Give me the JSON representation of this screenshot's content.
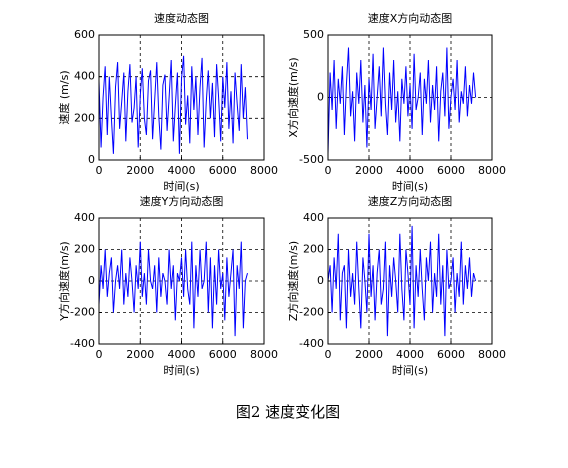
{
  "chart_data": [
    {
      "type": "line",
      "title": "速度动态图",
      "xlabel": "时间(s)",
      "ylabel": "速度 (m/s)",
      "xlim": [
        0,
        8000
      ],
      "xticks": [
        0,
        2000,
        4000,
        6000,
        8000
      ],
      "ylim": [
        0,
        600
      ],
      "yticks": [
        0,
        200,
        400,
        600
      ],
      "grid": true,
      "x": [
        0,
        100,
        200,
        300,
        400,
        500,
        600,
        700,
        800,
        900,
        1000,
        1100,
        1200,
        1300,
        1400,
        1500,
        1600,
        1700,
        1800,
        1900,
        2000,
        2100,
        2200,
        2300,
        2400,
        2500,
        2600,
        2700,
        2800,
        2900,
        3000,
        3100,
        3200,
        3300,
        3400,
        3500,
        3600,
        3700,
        3800,
        3900,
        4000,
        4100,
        4200,
        4300,
        4400,
        4500,
        4600,
        4700,
        4800,
        4900,
        5000,
        5100,
        5200,
        5300,
        5400,
        5500,
        5600,
        5700,
        5800,
        5900,
        6000,
        6100,
        6200,
        6300,
        6400,
        6500,
        6600,
        6700,
        6800,
        6900,
        7000,
        7100,
        7200
      ],
      "series": [
        {
          "color": "#0000ff",
          "values": [
            380,
            60,
            300,
            450,
            120,
            400,
            200,
            30,
            350,
            470,
            150,
            280,
            420,
            90,
            330,
            460,
            180,
            250,
            400,
            60,
            310,
            440,
            200,
            120,
            380,
            430,
            100,
            290,
            470,
            210,
            50,
            360,
            410,
            140,
            300,
            480,
            90,
            260,
            420,
            30,
            390,
            500,
            170,
            310,
            80,
            450,
            240,
            400,
            120,
            350,
            490,
            60,
            280,
            430,
            200,
            370,
            110,
            460,
            300,
            90,
            400,
            250,
            470,
            150,
            330,
            80,
            420,
            270,
            140,
            460,
            200,
            350,
            100
          ]
        }
      ]
    },
    {
      "type": "line",
      "title": "速度X方向动态图",
      "xlabel": "时间(s)",
      "ylabel": "X方向速度(m/s)",
      "xlim": [
        0,
        8000
      ],
      "xticks": [
        0,
        2000,
        4000,
        6000,
        8000
      ],
      "ylim": [
        -500,
        500
      ],
      "yticks": [
        -500,
        0,
        500
      ],
      "grid": true,
      "x": [
        0,
        100,
        200,
        300,
        400,
        500,
        600,
        700,
        800,
        900,
        1000,
        1100,
        1200,
        1300,
        1400,
        1500,
        1600,
        1700,
        1800,
        1900,
        2000,
        2100,
        2200,
        2300,
        2400,
        2500,
        2600,
        2700,
        2800,
        2900,
        3000,
        3100,
        3200,
        3300,
        3400,
        3500,
        3600,
        3700,
        3800,
        3900,
        4000,
        4100,
        4200,
        4300,
        4400,
        4500,
        4600,
        4700,
        4800,
        4900,
        5000,
        5100,
        5200,
        5300,
        5400,
        5500,
        5600,
        5700,
        5800,
        5900,
        6000,
        6100,
        6200,
        6300,
        6400,
        6500,
        6600,
        6700,
        6800,
        6900,
        7000,
        7100,
        7200
      ],
      "series": [
        {
          "color": "#0000ff",
          "values": [
            -450,
            200,
            -100,
            300,
            -250,
            150,
            -50,
            250,
            -300,
            100,
            400,
            -150,
            50,
            -350,
            200,
            -50,
            300,
            -200,
            100,
            -400,
            150,
            -100,
            350,
            -250,
            0,
            250,
            -150,
            400,
            -50,
            -300,
            200,
            -100,
            300,
            -200,
            50,
            -350,
            150,
            -50,
            250,
            -150,
            100,
            -250,
            350,
            -100,
            0,
            200,
            -300,
            150,
            -50,
            300,
            -200,
            100,
            -100,
            250,
            -350,
            50,
            200,
            -150,
            400,
            -250,
            0,
            150,
            -100,
            300,
            -200,
            50,
            -50,
            250,
            -150,
            100,
            -50,
            200,
            0
          ]
        }
      ]
    },
    {
      "type": "line",
      "title": "速度Y方向动态图",
      "xlabel": "时间(s)",
      "ylabel": "Y方向速度(m/s)",
      "xlim": [
        0,
        8000
      ],
      "xticks": [
        0,
        2000,
        4000,
        6000,
        8000
      ],
      "ylim": [
        -400,
        400
      ],
      "yticks": [
        -400,
        -200,
        0,
        200,
        400
      ],
      "grid": true,
      "x": [
        0,
        100,
        200,
        300,
        400,
        500,
        600,
        700,
        800,
        900,
        1000,
        1100,
        1200,
        1300,
        1400,
        1500,
        1600,
        1700,
        1800,
        1900,
        2000,
        2100,
        2200,
        2300,
        2400,
        2500,
        2600,
        2700,
        2800,
        2900,
        3000,
        3100,
        3200,
        3300,
        3400,
        3500,
        3600,
        3700,
        3800,
        3900,
        4000,
        4100,
        4200,
        4300,
        4400,
        4500,
        4600,
        4700,
        4800,
        4900,
        5000,
        5100,
        5200,
        5300,
        5400,
        5500,
        5600,
        5700,
        5800,
        5900,
        6000,
        6100,
        6200,
        6300,
        6400,
        6500,
        6600,
        6700,
        6800,
        6900,
        7000,
        7100,
        7200
      ],
      "series": [
        {
          "color": "#0000ff",
          "values": [
            -150,
            100,
            -50,
            200,
            -100,
            50,
            150,
            -200,
            0,
            100,
            -50,
            200,
            -150,
            50,
            -100,
            150,
            0,
            -200,
            100,
            -50,
            250,
            -100,
            50,
            -150,
            200,
            0,
            -50,
            100,
            -200,
            150,
            -100,
            50,
            0,
            -150,
            200,
            -50,
            100,
            -250,
            50,
            0,
            150,
            -100,
            200,
            -50,
            -150,
            250,
            -300,
            100,
            -100,
            200,
            -50,
            0,
            250,
            -200,
            150,
            -300,
            100,
            -150,
            200,
            -50,
            50,
            -250,
            150,
            -100,
            50,
            200,
            -350,
            100,
            -50,
            250,
            -300,
            0,
            50
          ]
        }
      ]
    },
    {
      "type": "line",
      "title": "速度Z方向动态图",
      "xlabel": "时间(s)",
      "ylabel": "Z方向速度(m/s)",
      "xlim": [
        0,
        8000
      ],
      "xticks": [
        0,
        2000,
        4000,
        6000,
        8000
      ],
      "ylim": [
        -400,
        400
      ],
      "yticks": [
        -400,
        -200,
        0,
        200,
        400
      ],
      "grid": true,
      "x": [
        0,
        100,
        200,
        300,
        400,
        500,
        600,
        700,
        800,
        900,
        1000,
        1100,
        1200,
        1300,
        1400,
        1500,
        1600,
        1700,
        1800,
        1900,
        2000,
        2100,
        2200,
        2300,
        2400,
        2500,
        2600,
        2700,
        2800,
        2900,
        3000,
        3100,
        3200,
        3300,
        3400,
        3500,
        3600,
        3700,
        3800,
        3900,
        4000,
        4100,
        4200,
        4300,
        4400,
        4500,
        4600,
        4700,
        4800,
        4900,
        5000,
        5100,
        5200,
        5300,
        5400,
        5500,
        5600,
        5700,
        5800,
        5900,
        6000,
        6100,
        6200,
        6300,
        6400,
        6500,
        6600,
        6700,
        6800,
        6900,
        7000,
        7100,
        7200
      ],
      "series": [
        {
          "color": "#0000ff",
          "values": [
            0,
            100,
            -200,
            150,
            -50,
            300,
            -250,
            50,
            100,
            -300,
            200,
            -100,
            50,
            -150,
            250,
            -50,
            -300,
            150,
            0,
            -200,
            300,
            -100,
            100,
            -250,
            50,
            200,
            -150,
            -50,
            250,
            -350,
            100,
            -100,
            150,
            0,
            -200,
            300,
            -50,
            -250,
            200,
            50,
            -150,
            350,
            -300,
            100,
            -100,
            200,
            -50,
            -250,
            150,
            0,
            250,
            -200,
            50,
            -100,
            300,
            -150,
            100,
            -350,
            200,
            -50,
            0,
            150,
            -200,
            50,
            -100,
            250,
            -150,
            100,
            -50,
            150,
            -100,
            50,
            0
          ]
        }
      ]
    }
  ],
  "caption": "图2 速度变化图"
}
